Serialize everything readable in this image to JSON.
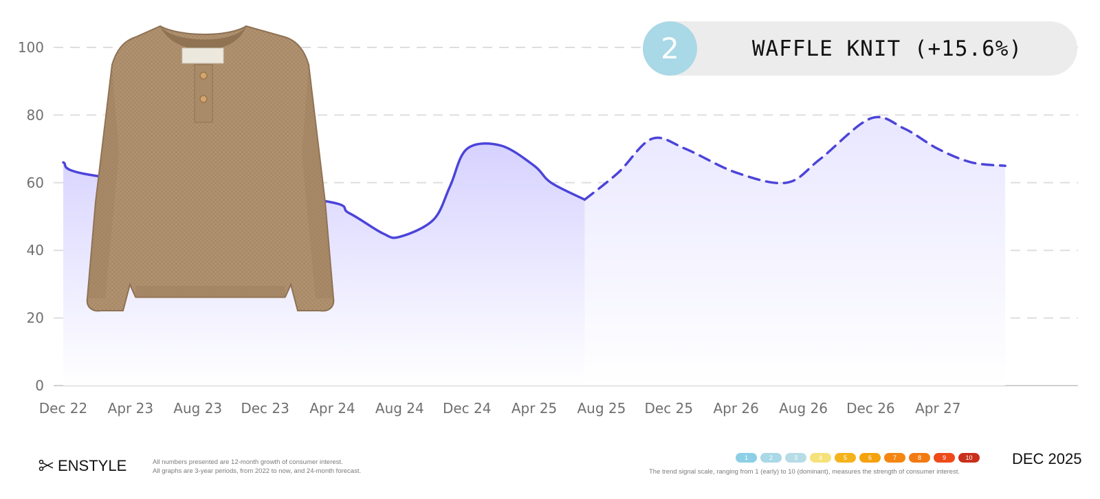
{
  "chart_data": {
    "type": "area",
    "ylim": [
      0,
      100
    ],
    "y_ticks": [
      "0",
      "20",
      "40",
      "60",
      "80",
      "100"
    ],
    "x_ticks": [
      "Dec 22",
      "Apr 23",
      "Aug 23",
      "Dec 23",
      "Apr 24",
      "Aug 24",
      "Dec 24",
      "Apr 25",
      "Aug 25",
      "Dec 25",
      "Apr 26",
      "Aug 26",
      "Dec 26",
      "Apr 27"
    ],
    "x_range": [
      "Dec 22",
      "Dec 27"
    ],
    "grid": true,
    "series": [
      {
        "style": "solid",
        "points": [
          {
            "x": "Dec 22",
            "y": 66
          },
          {
            "x": "Feb 23",
            "y": 62
          },
          {
            "x": "Mar 24",
            "y": 55
          },
          {
            "x": "May 24",
            "y": 51
          },
          {
            "x": "Jul 24",
            "y": 45
          },
          {
            "x": "Aug 24",
            "y": 44
          },
          {
            "x": "Oct 24",
            "y": 49
          },
          {
            "x": "Nov 24",
            "y": 59
          },
          {
            "x": "Dec 24",
            "y": 70
          },
          {
            "x": "Feb 25",
            "y": 71
          },
          {
            "x": "Apr 25",
            "y": 65
          },
          {
            "x": "May 25",
            "y": 60
          },
          {
            "x": "Jul 25",
            "y": 55
          }
        ]
      },
      {
        "style": "dashed",
        "label": "forecast",
        "points": [
          {
            "x": "Jul 25",
            "y": 55
          },
          {
            "x": "Sep 25",
            "y": 63
          },
          {
            "x": "Nov 25",
            "y": 73
          },
          {
            "x": "Jan 26",
            "y": 70
          },
          {
            "x": "Apr 26",
            "y": 63
          },
          {
            "x": "Jul 26",
            "y": 60
          },
          {
            "x": "Sep 26",
            "y": 67
          },
          {
            "x": "Dec 26",
            "y": 79
          },
          {
            "x": "Feb 27",
            "y": 76
          },
          {
            "x": "Apr 27",
            "y": 70
          },
          {
            "x": "Jun 27",
            "y": 66
          },
          {
            "x": "Aug 27",
            "y": 65
          }
        ]
      }
    ],
    "colors": {
      "line": "#4b44d9",
      "fill": "#d9d5ff",
      "grid": "#dedede",
      "axis": "#cfcfcf",
      "tick": "#6f6f6f"
    }
  },
  "badge": {
    "rank": "2",
    "title": "WAFFLE KNIT (+15.6%)",
    "color": "#a9d8e6"
  },
  "footer": {
    "brand": "ENSTYLE",
    "note_lines": [
      "All numbers presented are 12-month growth of consumer interest.",
      "All graphs are 3-year periods, from 2022 to now, and 24-month forecast."
    ],
    "scale": [
      {
        "label": "1",
        "color": "#8ccfe6"
      },
      {
        "label": "2",
        "color": "#a9d8e6"
      },
      {
        "label": "3",
        "color": "#b6dce6"
      },
      {
        "label": "4",
        "color": "#f6e27a"
      },
      {
        "label": "5",
        "color": "#f5b31b"
      },
      {
        "label": "6",
        "color": "#f5a20f"
      },
      {
        "label": "7",
        "color": "#f58612"
      },
      {
        "label": "8",
        "color": "#f37a13"
      },
      {
        "label": "9",
        "color": "#ee4a1a"
      },
      {
        "label": "10",
        "color": "#c9301c"
      }
    ],
    "scale_note": "The trend signal scale, ranging from 1 (early) to 10 (dominant), measures the strength of consumer interest.",
    "date": "DEC 2025"
  }
}
